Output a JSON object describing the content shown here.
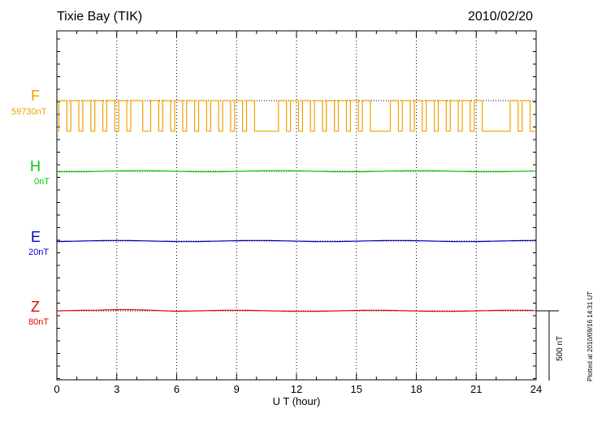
{
  "header": {
    "title": "Tixie Bay (TIK)",
    "date": "2010/02/20"
  },
  "plotted_note": "Plotted at 2010/09/16 14:31  UT",
  "scale_label": "500 nT",
  "chart_data": {
    "type": "line",
    "xlabel": "U T (hour)",
    "xlim": [
      0,
      24
    ],
    "xticks": [
      0,
      3,
      6,
      9,
      12,
      15,
      18,
      21,
      24
    ],
    "xtick_labels": [
      "0",
      "3",
      "6",
      "9",
      "12",
      "15",
      "18",
      "21",
      "24"
    ],
    "grid": "dotted vertical at 3-hour intervals",
    "scale_bar_nT": 500,
    "series": [
      {
        "name": "F",
        "baseline": "59730nT",
        "color": "#f0a000",
        "description_values": "square-wave switching between ~59730 nT and ~59430 nT",
        "on_intervals": [
          [
            0.1,
            0.5
          ],
          [
            0.7,
            1.1
          ],
          [
            1.3,
            1.7
          ],
          [
            1.9,
            2.3
          ],
          [
            2.5,
            2.9
          ],
          [
            3.1,
            3.5
          ],
          [
            3.7,
            4.3
          ],
          [
            4.7,
            5.1
          ],
          [
            5.3,
            5.7
          ],
          [
            5.9,
            6.3
          ],
          [
            6.5,
            6.9
          ],
          [
            7.1,
            7.5
          ],
          [
            7.7,
            8.1
          ],
          [
            8.3,
            8.7
          ],
          [
            8.9,
            9.3
          ],
          [
            9.5,
            9.9
          ],
          [
            11.1,
            11.5
          ],
          [
            11.7,
            12.1
          ],
          [
            12.3,
            12.7
          ],
          [
            12.9,
            13.3
          ],
          [
            13.5,
            13.9
          ],
          [
            14.1,
            14.5
          ],
          [
            14.7,
            15.1
          ],
          [
            15.3,
            15.7
          ],
          [
            16.7,
            17.1
          ],
          [
            17.3,
            17.7
          ],
          [
            17.9,
            18.3
          ],
          [
            18.5,
            18.9
          ],
          [
            19.1,
            19.5
          ],
          [
            19.7,
            20.1
          ],
          [
            20.3,
            20.7
          ],
          [
            20.9,
            21.3
          ],
          [
            22.7,
            23.1
          ],
          [
            23.3,
            23.7
          ]
        ],
        "low_offset_nT": -300
      },
      {
        "name": "H",
        "baseline": "0nT",
        "color": "#00cc00",
        "offset_nT": 0
      },
      {
        "name": "E",
        "baseline": "20nT",
        "color": "#0000cc",
        "offset_nT": 0
      },
      {
        "name": "Z",
        "baseline": "80nT",
        "color": "#ee0000",
        "offset_nT": 0
      }
    ]
  }
}
